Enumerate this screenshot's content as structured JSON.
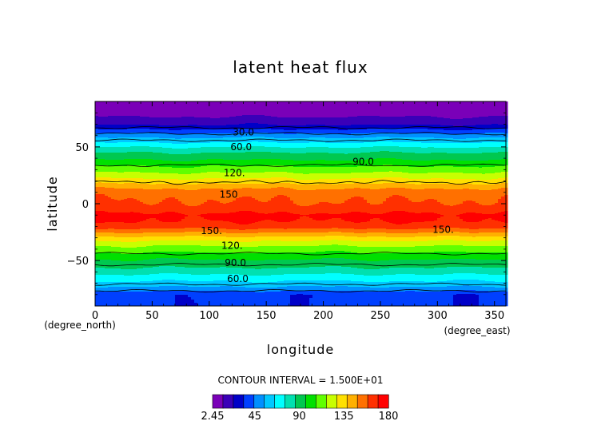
{
  "chart_data": {
    "type": "heatmap",
    "title": "latent heat flux",
    "xlabel": "longitude",
    "ylabel": "latitude",
    "x_units": "(degree_east)",
    "y_units": "(degree_north)",
    "xlim": [
      0,
      360
    ],
    "ylim": [
      -90,
      90
    ],
    "x_ticks": [
      "0",
      "50",
      "100",
      "150",
      "200",
      "250",
      "300",
      "350"
    ],
    "y_ticks": [
      "50",
      "0",
      "−50"
    ],
    "contour_interval_text": "CONTOUR INTERVAL = 1.500E+01",
    "colorbar_ticks": [
      "2.45",
      "45",
      "90",
      "135",
      "180"
    ],
    "colorbar_range": [
      2.45,
      180
    ],
    "palette": [
      "#7a00b8",
      "#3a00b8",
      "#0000c8",
      "#0040ff",
      "#0090ff",
      "#00c8ff",
      "#00ffff",
      "#00e0b0",
      "#00c850",
      "#00e000",
      "#60ff00",
      "#c8ff00",
      "#ffe000",
      "#ffb000",
      "#ff7000",
      "#ff3000",
      "#ff0000"
    ],
    "zonal_profile": {
      "lat": [
        -90,
        -80,
        -75,
        -70,
        -65,
        -60,
        -55,
        -50,
        -45,
        -40,
        -35,
        -30,
        -25,
        -20,
        -15,
        -10,
        -5,
        0,
        5,
        10,
        15,
        20,
        25,
        30,
        35,
        40,
        45,
        50,
        55,
        60,
        65,
        70,
        75,
        80,
        90
      ],
      "value": [
        35,
        35,
        50,
        62,
        70,
        80,
        88,
        95,
        103,
        112,
        122,
        135,
        150,
        165,
        170,
        172,
        165,
        160,
        158,
        155,
        145,
        132,
        122,
        112,
        103,
        94,
        86,
        75,
        62,
        50,
        35,
        22,
        15,
        8,
        3
      ]
    },
    "contour_labels": [
      {
        "text": "30.0",
        "lon": 130,
        "lat": 63
      },
      {
        "text": "60.0",
        "lon": 128,
        "lat": 50
      },
      {
        "text": "90.0",
        "lon": 235,
        "lat": 37
      },
      {
        "text": "120.",
        "lon": 122,
        "lat": 27
      },
      {
        "text": "150",
        "lon": 117,
        "lat": 8
      },
      {
        "text": "150.",
        "lon": 102,
        "lat": -24
      },
      {
        "text": "150.",
        "lon": 305,
        "lat": -23
      },
      {
        "text": "120.",
        "lon": 120,
        "lat": -37
      },
      {
        "text": "90.0",
        "lon": 123,
        "lat": -52
      },
      {
        "text": "60.0",
        "lon": 125,
        "lat": -66
      }
    ]
  }
}
